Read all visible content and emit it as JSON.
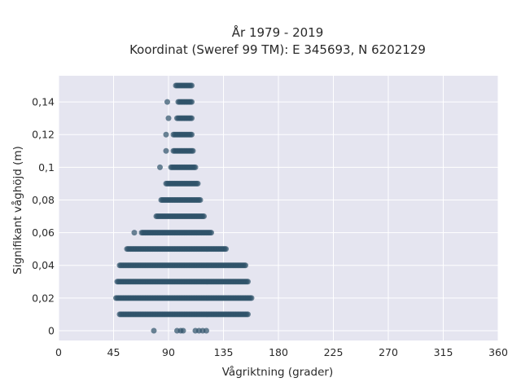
{
  "chart_data": {
    "type": "scatter",
    "title_line1": "År 1979 - 2019",
    "title_line2": "Koordinat (Sweref 99 TM): E 345693, N 6202129",
    "xlabel": "Vågriktning (grader)",
    "ylabel": "Signifikant våghöjd (m)",
    "xlim": [
      0,
      360
    ],
    "ylim": [
      -0.006,
      0.156
    ],
    "x_ticks": [
      0,
      45,
      90,
      135,
      180,
      225,
      270,
      315,
      360
    ],
    "x_tick_labels": [
      "0",
      "45",
      "90",
      "135",
      "180",
      "225",
      "270",
      "315",
      "360"
    ],
    "y_ticks": [
      0,
      0.02,
      0.04,
      0.06,
      0.08,
      0.1,
      0.12,
      0.14
    ],
    "y_tick_labels": [
      "0",
      "0,02",
      "0,04",
      "0,06",
      "0,08",
      "0,1",
      "0,12",
      "0,14"
    ],
    "grid": true,
    "colors": {
      "background": "#e5e5f0",
      "grid": "#ffffff",
      "marker": "#2f5269"
    },
    "marker_opacity": 0.7,
    "bands": [
      {
        "y": 0.15,
        "x_min": 96,
        "x_max": 109
      },
      {
        "y": 0.14,
        "x_min": 98,
        "x_max": 109
      },
      {
        "y": 0.13,
        "x_min": 97,
        "x_max": 109
      },
      {
        "y": 0.12,
        "x_min": 94,
        "x_max": 109
      },
      {
        "y": 0.11,
        "x_min": 94,
        "x_max": 110
      },
      {
        "y": 0.1,
        "x_min": 92,
        "x_max": 112
      },
      {
        "y": 0.09,
        "x_min": 88,
        "x_max": 114
      },
      {
        "y": 0.08,
        "x_min": 84,
        "x_max": 116
      },
      {
        "y": 0.07,
        "x_min": 80,
        "x_max": 119
      },
      {
        "y": 0.06,
        "x_min": 68,
        "x_max": 125
      },
      {
        "y": 0.05,
        "x_min": 56,
        "x_max": 137
      },
      {
        "y": 0.04,
        "x_min": 50,
        "x_max": 153
      },
      {
        "y": 0.03,
        "x_min": 48,
        "x_max": 155
      },
      {
        "y": 0.02,
        "x_min": 47,
        "x_max": 158
      },
      {
        "y": 0.01,
        "x_min": 50,
        "x_max": 155
      }
    ],
    "scattered_points": [
      {
        "x": 89,
        "y": 0.14
      },
      {
        "x": 90,
        "y": 0.13
      },
      {
        "x": 88,
        "y": 0.12
      },
      {
        "x": 88,
        "y": 0.11
      },
      {
        "x": 83,
        "y": 0.1
      },
      {
        "x": 62,
        "y": 0.06
      },
      {
        "x": 78,
        "y": 0
      },
      {
        "x": 97,
        "y": 0
      },
      {
        "x": 100,
        "y": 0
      },
      {
        "x": 102,
        "y": 0
      },
      {
        "x": 112,
        "y": 0
      },
      {
        "x": 115,
        "y": 0
      },
      {
        "x": 118,
        "y": 0
      },
      {
        "x": 121,
        "y": 0
      }
    ]
  }
}
